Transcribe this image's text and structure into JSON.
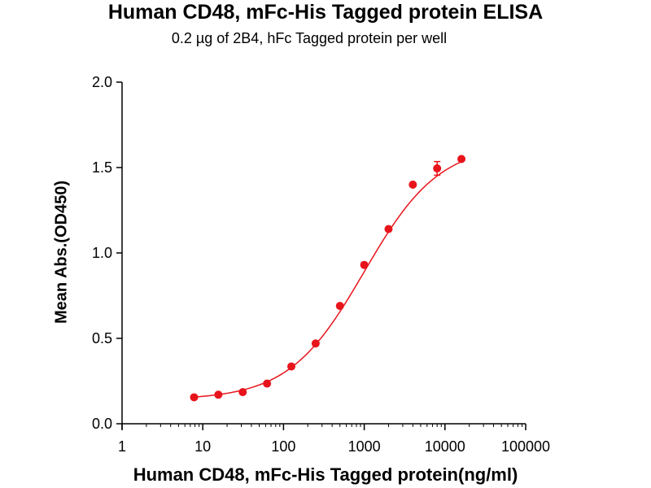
{
  "chart_data": {
    "type": "scatter",
    "title": "Human CD48, mFc-His Tagged protein ELISA",
    "subtitle": "0.2 µg of 2B4, hFc Tagged protein per well",
    "xlabel": "Human CD48, mFc-His Tagged protein(ng/ml)",
    "ylabel": "Mean Abs.(OD450)",
    "xscale": "log",
    "xlim": [
      1,
      100000
    ],
    "ylim": [
      0.0,
      2.0
    ],
    "x_ticks": [
      "1",
      "10",
      "100",
      "1000",
      "10000",
      "100000"
    ],
    "y_ticks": [
      "0.0",
      "0.5",
      "1.0",
      "1.5",
      "2.0"
    ],
    "grid": false,
    "color": "#e8141b",
    "series": [
      {
        "x": [
          7.8,
          15.6,
          31.25,
          62.5,
          125,
          250,
          500,
          1000,
          2000,
          4000,
          8000,
          16000
        ],
        "y": [
          0.155,
          0.17,
          0.185,
          0.235,
          0.335,
          0.47,
          0.69,
          0.93,
          1.14,
          1.4,
          1.495,
          1.55
        ],
        "error": [
          0.01,
          0.01,
          0.01,
          0.01,
          0.01,
          0.01,
          0.01,
          0.01,
          0.01,
          0.01,
          0.04,
          0.01
        ]
      }
    ],
    "fit": {
      "type": "4PL sigmoid"
    }
  }
}
